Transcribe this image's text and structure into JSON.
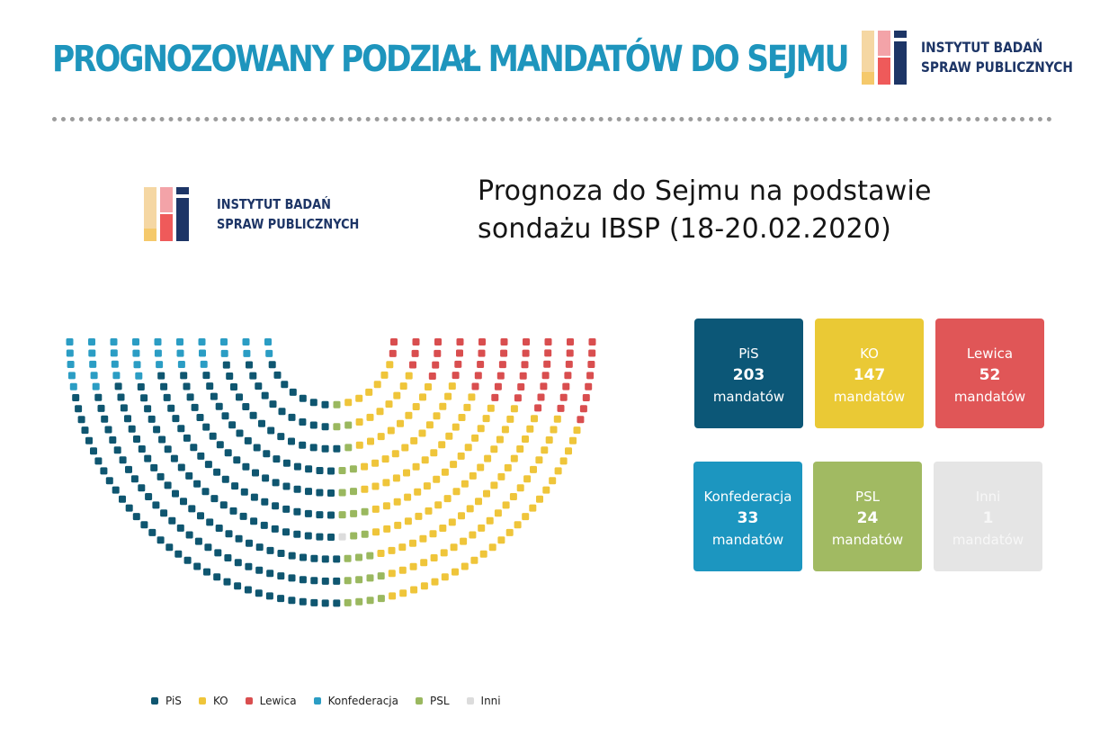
{
  "header": {
    "title": "PROGNOZOWANY PODZIAŁ MANDATÓW DO SEJMU"
  },
  "logo": {
    "line1": "INSTYTUT BADAŃ",
    "line2": "SPRAW PUBLICZNYCH",
    "colors": [
      "#f5d7a3",
      "#f3a3a8",
      "#1d3566",
      "#f5c96b",
      "#ef5a5a",
      "#1d3566"
    ]
  },
  "chart_data": {
    "type": "hemicycle",
    "title_line1": "Prognoza do Sejmu na podstawie",
    "title_line2": "sondażu IBSP (18-20.02.2020)",
    "unit": "mandatów",
    "total_seats": 460,
    "parties": [
      {
        "name": "PiS",
        "seats": 203,
        "color": "#0c5777",
        "dot_color": "#0f5670"
      },
      {
        "name": "KO",
        "seats": 147,
        "color": "#eac935",
        "dot_color": "#efc53a"
      },
      {
        "name": "Lewica",
        "seats": 52,
        "color": "#e05657",
        "dot_color": "#d94e4f"
      },
      {
        "name": "Konfederacja",
        "seats": 33,
        "color": "#1c96c0",
        "dot_color": "#2b9dc4"
      },
      {
        "name": "PSL",
        "seats": 24,
        "color": "#a1ba62",
        "dot_color": "#9ab85f"
      },
      {
        "name": "Inni",
        "seats": 1,
        "color": "#e5e5e5",
        "dot_color": "#dcdcdc"
      }
    ],
    "legend_placement": "bottom"
  }
}
